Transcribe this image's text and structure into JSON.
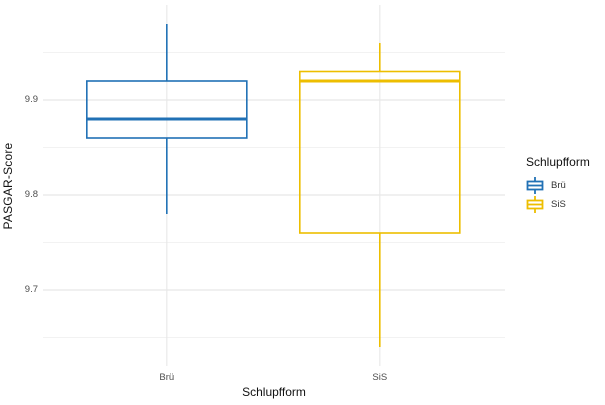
{
  "figure": {
    "background": "#ffffff",
    "grid_major_color": "#e6e6e6",
    "grid_minor_color": "#f2f2f2",
    "grid_vertical_color": "#e9e9e9",
    "tick_label_color": "#4d4d4d",
    "axis_title_color": "#111111"
  },
  "legend": {
    "title": "Schlupfform",
    "items": [
      {
        "label": "Brü",
        "color": "#2171b5"
      },
      {
        "label": "SiS",
        "color": "#edbe00"
      }
    ]
  },
  "chart_data": {
    "type": "boxplot",
    "title": "",
    "xlabel": "Schlupfform",
    "ylabel": "PASGAR-Score",
    "categories": [
      "Brü",
      "SiS"
    ],
    "series": [
      {
        "name": "Brü",
        "color": "#2171b5",
        "whisker_low": 9.78,
        "q1": 9.86,
        "median": 9.88,
        "q3": 9.92,
        "whisker_high": 9.98
      },
      {
        "name": "SiS",
        "color": "#edbe00",
        "whisker_low": 9.64,
        "q1": 9.76,
        "median": 9.92,
        "q3": 9.93,
        "whisker_high": 9.96
      }
    ],
    "ylim": [
      9.62,
      10.0
    ],
    "y_ticks": [
      9.9,
      9.8,
      9.7
    ],
    "y_minor_ticks": [
      9.95,
      9.85,
      9.75,
      9.65
    ],
    "grid": true,
    "legend_position": "right",
    "legend_title": "Schlupfform"
  }
}
